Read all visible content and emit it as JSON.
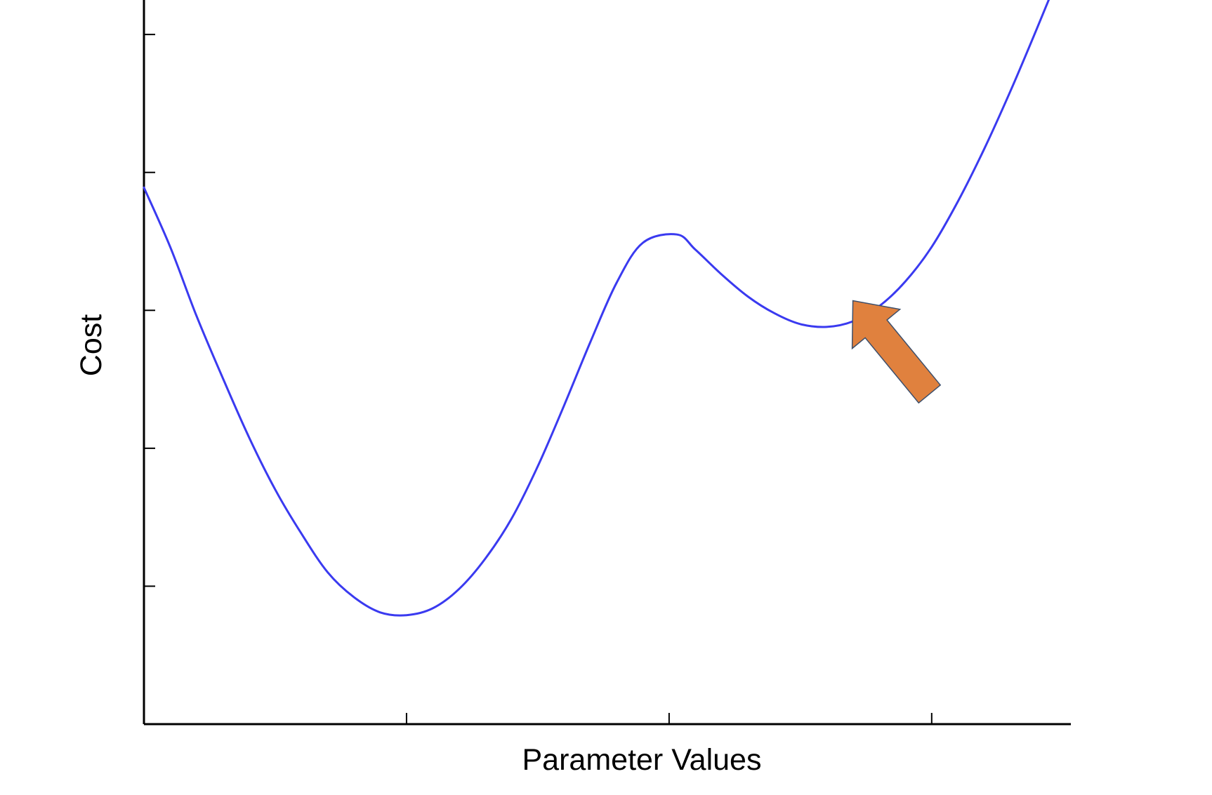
{
  "chart_data": {
    "type": "line",
    "title": "",
    "xlabel": "Parameter Values",
    "ylabel": "Cost",
    "xlim": [
      0,
      3.53
    ],
    "ylim": [
      0,
      5.25
    ],
    "x_ticks": [
      1,
      2,
      3
    ],
    "y_ticks": [
      1,
      2,
      3,
      4,
      5
    ],
    "tick_labels_shown": false,
    "grid": false,
    "line_color": "#3a3af0",
    "series": [
      {
        "x": [
          0.0,
          0.1,
          0.2,
          0.3,
          0.4,
          0.5,
          0.6,
          0.7,
          0.8,
          0.9,
          1.0,
          1.1,
          1.2,
          1.3,
          1.4,
          1.5,
          1.6,
          1.7,
          1.8,
          1.9,
          2.03,
          2.1,
          2.2,
          2.3,
          2.4,
          2.5,
          2.6,
          2.7,
          2.8,
          2.9,
          3.0,
          3.1,
          3.2,
          3.3,
          3.4,
          3.51
        ],
        "y": [
          3.89,
          3.46,
          2.96,
          2.51,
          2.08,
          1.7,
          1.38,
          1.1,
          0.92,
          0.81,
          0.79,
          0.84,
          0.98,
          1.2,
          1.49,
          1.87,
          2.31,
          2.77,
          3.2,
          3.49,
          3.55,
          3.44,
          3.26,
          3.1,
          2.98,
          2.9,
          2.88,
          2.92,
          3.03,
          3.21,
          3.46,
          3.79,
          4.17,
          4.59,
          5.04,
          5.55
        ]
      }
    ],
    "annotations": [
      {
        "type": "arrow",
        "points_to": {
          "x": 2.7,
          "y": 3.07
        },
        "color": "#e0813e",
        "outline": "#3d4f6b"
      }
    ]
  }
}
